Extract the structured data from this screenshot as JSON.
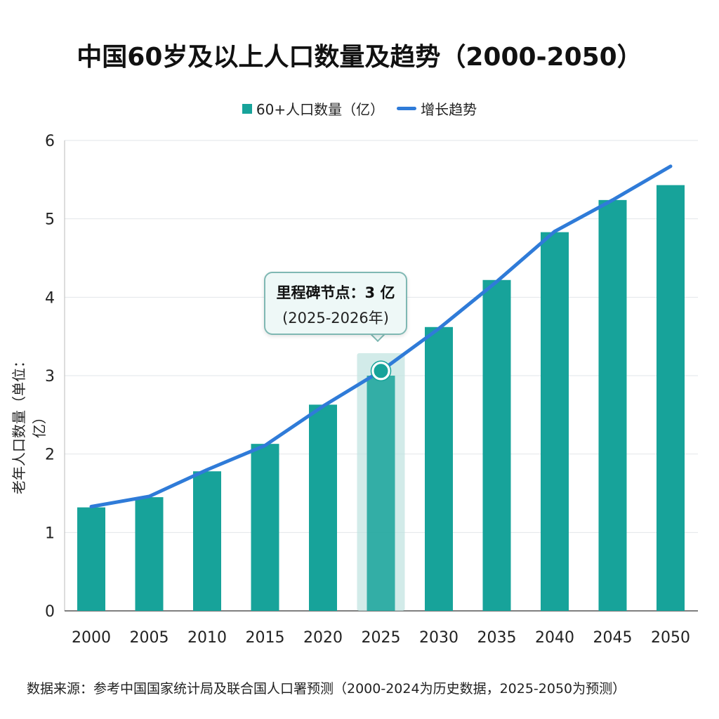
{
  "colors": {
    "bar": "#17a39a",
    "line": "#2f7bd8",
    "highlight": "#bfe3df"
  },
  "chart_data": {
    "type": "bar",
    "title": "中国60岁及以上人口数量及趋势（2000-2050）",
    "ylabel": "老年人口数量（单位：亿）",
    "xlabel": "",
    "ylim": [
      0,
      6
    ],
    "yticks": [
      0,
      1,
      2,
      3,
      4,
      5,
      6
    ],
    "grid": true,
    "legend_position": "top",
    "categories": [
      "2000",
      "2005",
      "2010",
      "2015",
      "2020",
      "2025",
      "2030",
      "2035",
      "2040",
      "2045",
      "2050"
    ],
    "series": [
      {
        "name": "60+人口数量（亿）",
        "type": "bar",
        "values": [
          1.32,
          1.45,
          1.78,
          2.13,
          2.63,
          3.0,
          3.62,
          4.22,
          4.83,
          5.24,
          5.43
        ]
      },
      {
        "name": "增长趋势",
        "type": "line",
        "values": [
          1.33,
          1.46,
          1.8,
          2.11,
          2.61,
          3.06,
          3.6,
          4.2,
          4.84,
          5.24,
          5.67
        ]
      }
    ],
    "annotation": {
      "category": "2025",
      "line1": "里程碑节点：3 亿",
      "line2": "(2025-2026年)"
    }
  },
  "footer": "数据来源：参考中国国家统计局及联合国人口署预测（2000-2024为历史数据，2025-2050为预测）"
}
